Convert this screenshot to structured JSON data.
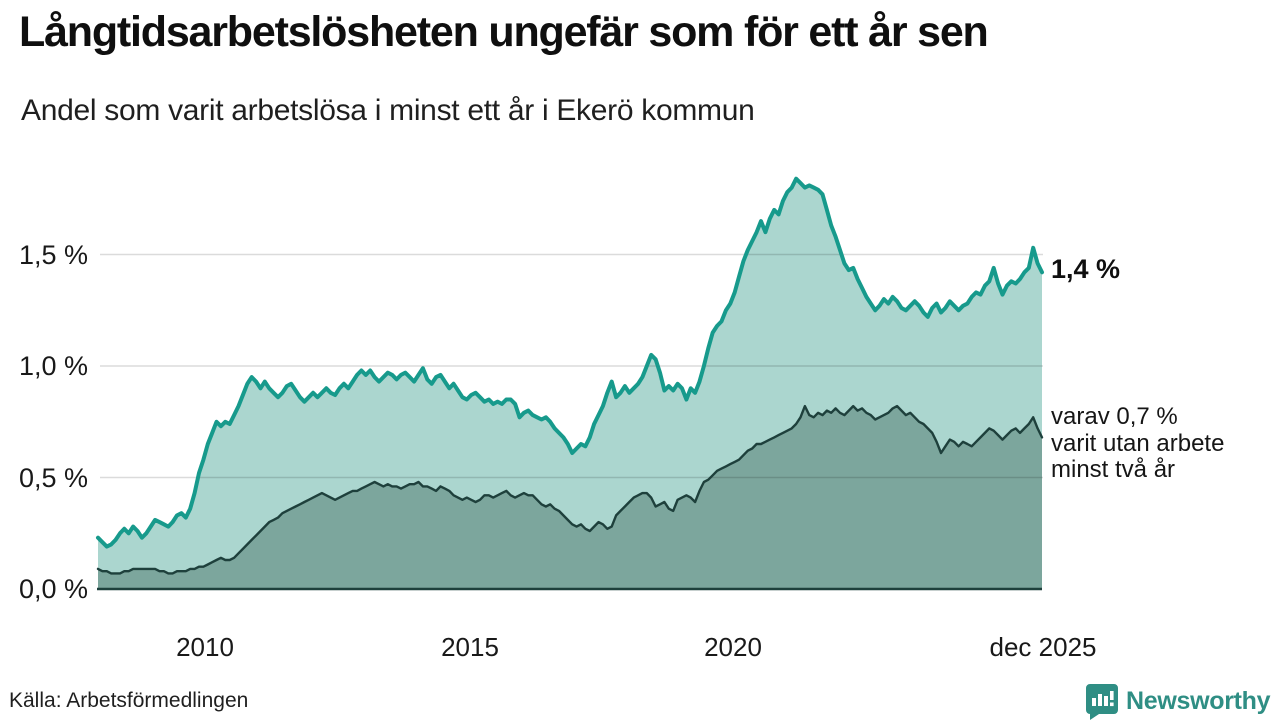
{
  "header": {
    "title": "Långtidsarbetslösheten ungefär som för ett år sen",
    "subtitle": "Andel som varit arbetslösa i minst ett år i Ekerö kommun"
  },
  "annotations": {
    "latest_total": "1,4 %",
    "breakdown_lines": [
      "varav 0,7 %",
      "varit utan arbete",
      "minst två år"
    ]
  },
  "footer": {
    "source": "Källa: Arbetsförmedlingen",
    "brand": "Newsworthy"
  },
  "chart_data": {
    "type": "area",
    "title": "Långtidsarbetslösheten ungefär som för ett år sen",
    "subtitle": "Andel som varit arbetslösa i minst ett år i Ekerö kommun",
    "unit": "%",
    "frequency": "monthly",
    "x_start": "2008-01",
    "x_end": "2025-12",
    "ylim": [
      0,
      1.9
    ],
    "grid": true,
    "legend_position": "annotations-right",
    "yticks": [
      {
        "label": "0,0 %",
        "value": 0.0
      },
      {
        "label": "0,5 %",
        "value": 0.5
      },
      {
        "label": "1,0 %",
        "value": 1.0
      },
      {
        "label": "1,5 %",
        "value": 1.5
      }
    ],
    "xticks": [
      {
        "label": "2010",
        "month_index": 24
      },
      {
        "label": "2015",
        "month_index": 84
      },
      {
        "label": "2020",
        "month_index": 144
      },
      {
        "label": "dec 2025",
        "month_index": 215
      }
    ],
    "colors": {
      "axis": "#1e403c",
      "gridline": "rgba(0,0,0,0.14)",
      "accent_teal": "#179a8c",
      "brand_teal": "#2f8e84"
    },
    "series": [
      {
        "name": "Andel arbetslösa minst ett år",
        "color": "#179a8c",
        "fill": "#abd6cf",
        "latest_value": 1.4,
        "values": [
          0.23,
          0.21,
          0.19,
          0.2,
          0.22,
          0.25,
          0.27,
          0.25,
          0.28,
          0.26,
          0.23,
          0.25,
          0.28,
          0.31,
          0.3,
          0.29,
          0.28,
          0.3,
          0.33,
          0.34,
          0.32,
          0.36,
          0.43,
          0.52,
          0.58,
          0.65,
          0.7,
          0.75,
          0.73,
          0.75,
          0.74,
          0.78,
          0.82,
          0.87,
          0.92,
          0.95,
          0.93,
          0.9,
          0.93,
          0.9,
          0.88,
          0.86,
          0.88,
          0.91,
          0.92,
          0.89,
          0.86,
          0.84,
          0.86,
          0.88,
          0.86,
          0.88,
          0.9,
          0.88,
          0.87,
          0.9,
          0.92,
          0.9,
          0.93,
          0.96,
          0.98,
          0.96,
          0.98,
          0.95,
          0.93,
          0.95,
          0.97,
          0.96,
          0.94,
          0.96,
          0.97,
          0.95,
          0.93,
          0.96,
          0.99,
          0.94,
          0.92,
          0.95,
          0.96,
          0.93,
          0.9,
          0.92,
          0.89,
          0.86,
          0.85,
          0.87,
          0.88,
          0.86,
          0.84,
          0.85,
          0.83,
          0.84,
          0.83,
          0.85,
          0.85,
          0.83,
          0.77,
          0.79,
          0.8,
          0.78,
          0.77,
          0.76,
          0.77,
          0.75,
          0.72,
          0.7,
          0.68,
          0.65,
          0.61,
          0.63,
          0.65,
          0.64,
          0.68,
          0.74,
          0.78,
          0.82,
          0.88,
          0.93,
          0.86,
          0.88,
          0.91,
          0.88,
          0.9,
          0.92,
          0.95,
          1.0,
          1.05,
          1.03,
          0.97,
          0.89,
          0.91,
          0.89,
          0.92,
          0.9,
          0.85,
          0.9,
          0.88,
          0.93,
          1.0,
          1.08,
          1.15,
          1.18,
          1.2,
          1.25,
          1.28,
          1.33,
          1.4,
          1.47,
          1.52,
          1.56,
          1.6,
          1.65,
          1.6,
          1.66,
          1.7,
          1.68,
          1.74,
          1.78,
          1.8,
          1.84,
          1.82,
          1.8,
          1.81,
          1.8,
          1.79,
          1.77,
          1.7,
          1.63,
          1.58,
          1.52,
          1.46,
          1.43,
          1.44,
          1.39,
          1.35,
          1.31,
          1.28,
          1.25,
          1.27,
          1.3,
          1.28,
          1.31,
          1.29,
          1.26,
          1.25,
          1.27,
          1.29,
          1.27,
          1.24,
          1.22,
          1.26,
          1.28,
          1.24,
          1.26,
          1.29,
          1.27,
          1.25,
          1.27,
          1.28,
          1.31,
          1.33,
          1.32,
          1.36,
          1.38,
          1.44,
          1.37,
          1.32,
          1.36,
          1.38,
          1.37,
          1.39,
          1.42,
          1.44,
          1.53,
          1.46,
          1.42
        ]
      },
      {
        "name": "Varav utan arbete minst två år",
        "color": "#1e403c",
        "fill": "#7ca69d",
        "latest_value": 0.7,
        "values": [
          0.09,
          0.08,
          0.08,
          0.07,
          0.07,
          0.07,
          0.08,
          0.08,
          0.09,
          0.09,
          0.09,
          0.09,
          0.09,
          0.09,
          0.08,
          0.08,
          0.07,
          0.07,
          0.08,
          0.08,
          0.08,
          0.09,
          0.09,
          0.1,
          0.1,
          0.11,
          0.12,
          0.13,
          0.14,
          0.13,
          0.13,
          0.14,
          0.16,
          0.18,
          0.2,
          0.22,
          0.24,
          0.26,
          0.28,
          0.3,
          0.31,
          0.32,
          0.34,
          0.35,
          0.36,
          0.37,
          0.38,
          0.39,
          0.4,
          0.41,
          0.42,
          0.43,
          0.42,
          0.41,
          0.4,
          0.41,
          0.42,
          0.43,
          0.44,
          0.44,
          0.45,
          0.46,
          0.47,
          0.48,
          0.47,
          0.46,
          0.47,
          0.46,
          0.46,
          0.45,
          0.46,
          0.47,
          0.47,
          0.48,
          0.46,
          0.46,
          0.45,
          0.44,
          0.46,
          0.45,
          0.44,
          0.42,
          0.41,
          0.4,
          0.41,
          0.4,
          0.39,
          0.4,
          0.42,
          0.42,
          0.41,
          0.42,
          0.43,
          0.44,
          0.42,
          0.41,
          0.42,
          0.43,
          0.42,
          0.42,
          0.4,
          0.38,
          0.37,
          0.38,
          0.36,
          0.35,
          0.33,
          0.31,
          0.29,
          0.28,
          0.29,
          0.27,
          0.26,
          0.28,
          0.3,
          0.29,
          0.27,
          0.28,
          0.33,
          0.35,
          0.37,
          0.39,
          0.41,
          0.42,
          0.43,
          0.43,
          0.41,
          0.37,
          0.38,
          0.39,
          0.36,
          0.35,
          0.4,
          0.41,
          0.42,
          0.41,
          0.39,
          0.44,
          0.48,
          0.49,
          0.51,
          0.53,
          0.54,
          0.55,
          0.56,
          0.57,
          0.58,
          0.6,
          0.62,
          0.63,
          0.65,
          0.65,
          0.66,
          0.67,
          0.68,
          0.69,
          0.7,
          0.71,
          0.72,
          0.74,
          0.77,
          0.82,
          0.78,
          0.77,
          0.79,
          0.78,
          0.8,
          0.79,
          0.81,
          0.79,
          0.78,
          0.8,
          0.82,
          0.8,
          0.81,
          0.79,
          0.78,
          0.76,
          0.77,
          0.78,
          0.79,
          0.81,
          0.82,
          0.8,
          0.78,
          0.79,
          0.77,
          0.75,
          0.74,
          0.72,
          0.7,
          0.66,
          0.61,
          0.64,
          0.67,
          0.66,
          0.64,
          0.66,
          0.65,
          0.64,
          0.66,
          0.68,
          0.7,
          0.72,
          0.71,
          0.69,
          0.67,
          0.69,
          0.71,
          0.72,
          0.7,
          0.72,
          0.74,
          0.77,
          0.72,
          0.68
        ]
      }
    ]
  }
}
